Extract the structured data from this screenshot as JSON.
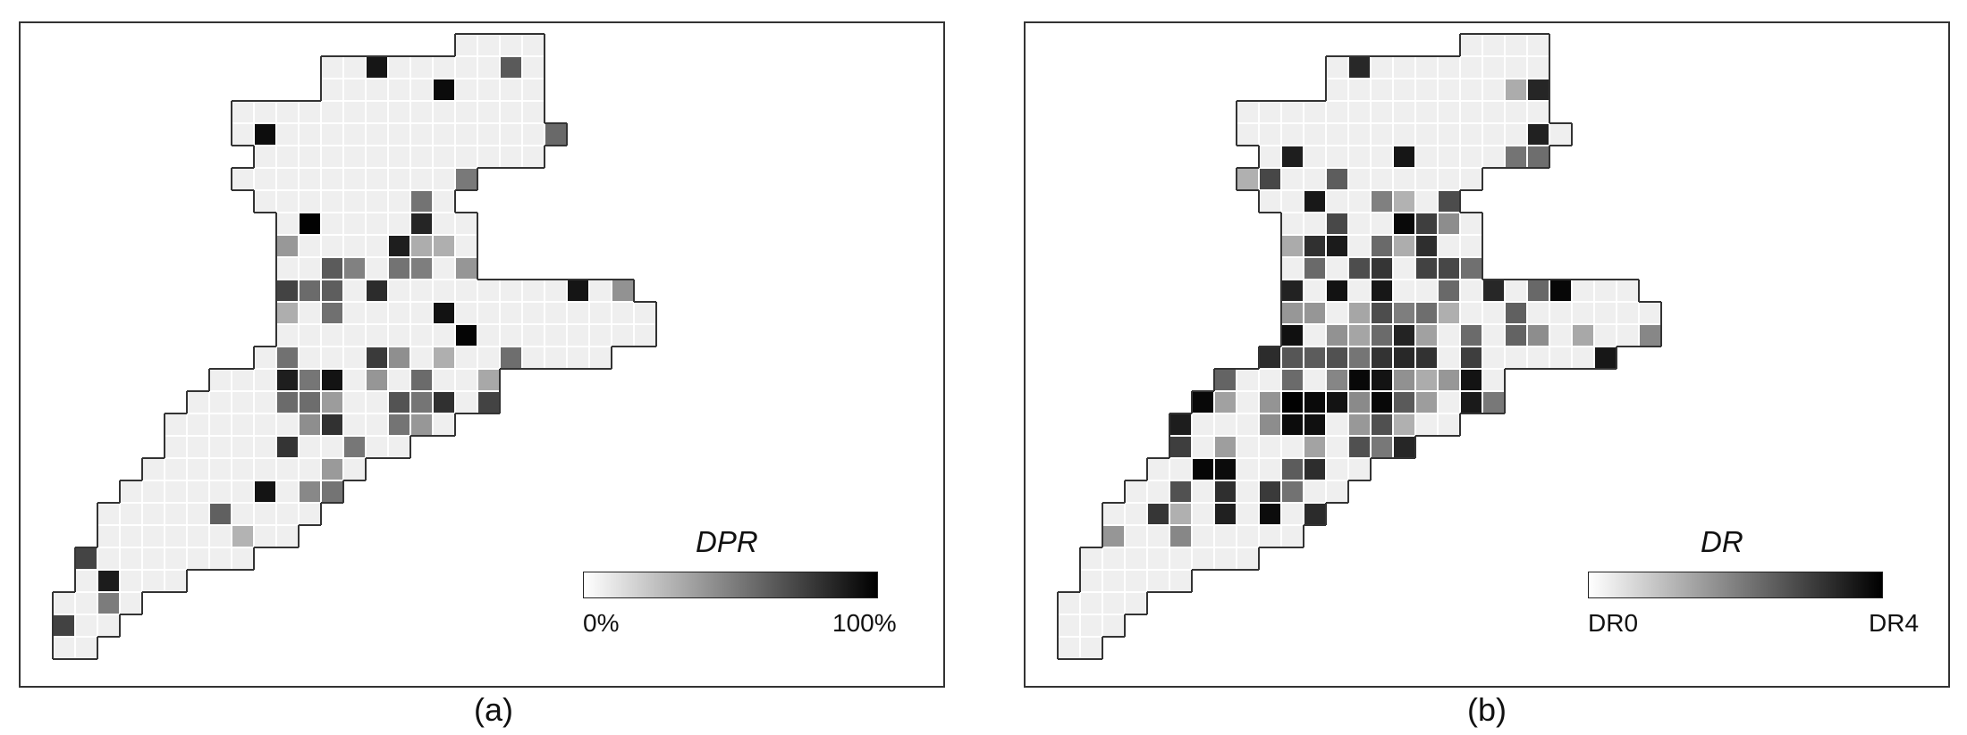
{
  "panels": [
    {
      "id": "a",
      "caption": "(a)",
      "legend": {
        "title": "DPR",
        "min_label": "0%",
        "max_label": "100%"
      },
      "gradient": {
        "start": "#ffffff",
        "end": "#000000"
      }
    },
    {
      "id": "b",
      "caption": "(b)",
      "legend": {
        "title": "DR",
        "min_label": "DR0",
        "max_label": "DR4"
      },
      "gradient": {
        "start": "#ffffff",
        "end": "#000000"
      }
    }
  ],
  "colors": {
    "cell_light": "#efefef",
    "cell_grid": "#ffffff",
    "outline": "#333333"
  }
}
